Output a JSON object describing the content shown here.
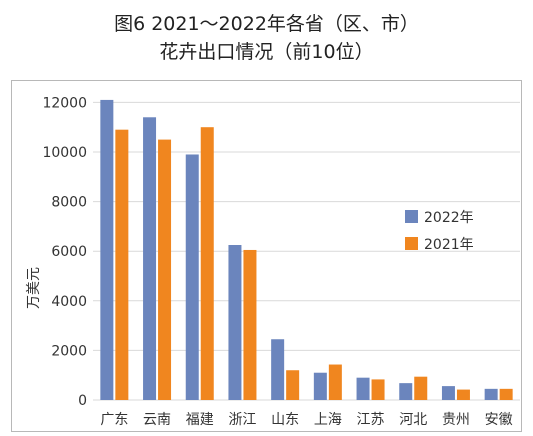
{
  "figure": {
    "title_line1": "图6 2021～2022年各省（区、市）",
    "title_line2": "花卉出口情况（前10位）"
  },
  "colors": {
    "series_2022": "#6b85bd",
    "series_2021": "#f0861f",
    "grid": "#d9d9d9",
    "axis_text": "#333333"
  },
  "chart_data": {
    "type": "bar",
    "title": "图6 2021～2022年各省（区、市）花卉出口情况（前10位）",
    "xlabel": "",
    "ylabel": "万美元",
    "ylim": [
      0,
      12500
    ],
    "yticks": [
      0,
      2000,
      4000,
      6000,
      8000,
      10000,
      12000
    ],
    "grid": true,
    "legend_position": "right",
    "categories": [
      "广东",
      "云南",
      "福建",
      "浙江",
      "山东",
      "上海",
      "江苏",
      "河北",
      "贵州",
      "安徽"
    ],
    "series": [
      {
        "name": "2022年",
        "color": "#6b85bd",
        "values": [
          12100,
          11400,
          9900,
          6250,
          2450,
          1100,
          900,
          680,
          560,
          450
        ]
      },
      {
        "name": "2021年",
        "color": "#f0861f",
        "values": [
          10900,
          10500,
          11000,
          6050,
          1200,
          1430,
          830,
          940,
          420,
          450
        ]
      }
    ]
  }
}
